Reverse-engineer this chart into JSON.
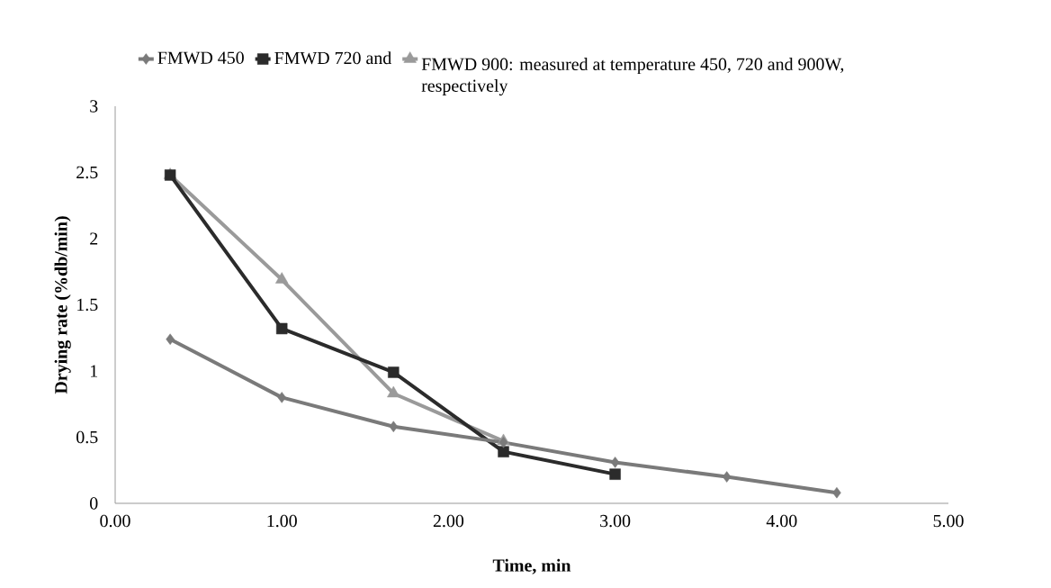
{
  "chart_data": {
    "type": "line",
    "xlabel": "Time, min",
    "ylabel": "Drying rate (%db/min)",
    "x": [
      0.33,
      1.0,
      1.67,
      2.33,
      3.0,
      3.67,
      4.33
    ],
    "series": [
      {
        "name": "FMWD 450",
        "color": "#7a7a7a",
        "marker": "diamond",
        "values": [
          1.24,
          0.8,
          0.58,
          0.46,
          0.31,
          0.2,
          0.08
        ]
      },
      {
        "name": "FMWD 720 and",
        "color": "#2b2b2b",
        "marker": "square",
        "values": [
          2.48,
          1.32,
          0.99,
          0.39,
          0.22,
          null,
          null
        ]
      },
      {
        "name": "FMWD 900: measured at temperature 450, 720 and 900W, respectively",
        "color": "#9a9a9a",
        "marker": "triangle",
        "values": [
          2.48,
          1.69,
          0.83,
          0.47,
          null,
          null,
          null
        ]
      }
    ],
    "xlim": [
      0,
      5
    ],
    "xticks": [
      {
        "value": 0,
        "label": "0.00"
      },
      {
        "value": 1,
        "label": "1.00"
      },
      {
        "value": 2,
        "label": "2.00"
      },
      {
        "value": 3,
        "label": "3.00"
      },
      {
        "value": 4,
        "label": "4.00"
      },
      {
        "value": 5,
        "label": "5.00"
      }
    ],
    "ylim": [
      0,
      3
    ],
    "yticks": [
      0,
      0.5,
      1,
      1.5,
      2,
      2.5,
      3
    ],
    "grid": false,
    "legend": "top",
    "line_style": "solid"
  }
}
